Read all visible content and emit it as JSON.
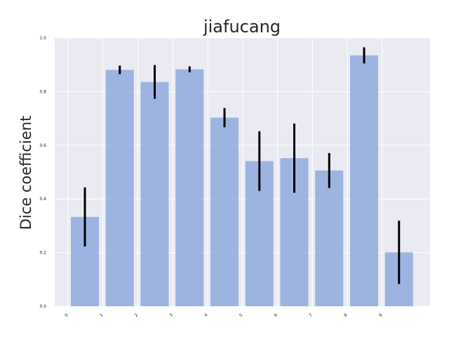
{
  "chart_data": {
    "type": "bar",
    "title": "jiafucang",
    "xlabel": "",
    "ylabel": "Dice coefficient",
    "categories": [
      "0",
      "1",
      "2",
      "3",
      "4",
      "5",
      "6",
      "7",
      "8",
      "9"
    ],
    "values": [
      0.333,
      0.881,
      0.836,
      0.883,
      0.703,
      0.541,
      0.552,
      0.506,
      0.935,
      0.201
    ],
    "error_low": [
      0.223,
      0.865,
      0.773,
      0.872,
      0.667,
      0.43,
      0.423,
      0.441,
      0.905,
      0.083
    ],
    "error_high": [
      0.443,
      0.897,
      0.899,
      0.894,
      0.739,
      0.652,
      0.681,
      0.571,
      0.965,
      0.319
    ],
    "ylim": [
      0.0,
      1.0
    ],
    "yticks": [
      "0.0",
      "0.2",
      "0.4",
      "0.6",
      "0.8",
      "1.0"
    ],
    "grid": true,
    "colors": {
      "bar": "#8faade",
      "bar_opacity": 0.85,
      "plot_background": "#eaeaf2",
      "grid": "#ffffff",
      "error_bar": "#000000",
      "text": "#262626"
    }
  }
}
